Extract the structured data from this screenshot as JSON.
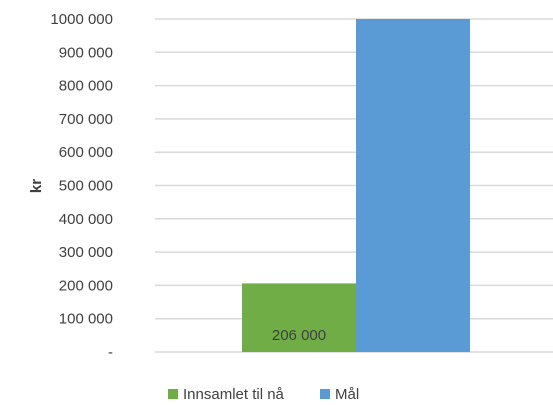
{
  "chart_data": {
    "type": "bar",
    "categories": [
      ""
    ],
    "series": [
      {
        "name": "Innsamlet til nå",
        "values": [
          206000
        ],
        "color": "#70AD47"
      },
      {
        "name": "Mål",
        "values": [
          1000000
        ],
        "color": "#5B9BD5"
      }
    ],
    "ylabel": "kr",
    "ylim": [
      0,
      1000000
    ],
    "yticks": [
      0,
      100000,
      200000,
      300000,
      400000,
      500000,
      600000,
      700000,
      800000,
      900000,
      1000000
    ],
    "ytick_labels": [
      "-",
      "100 000",
      "200 000",
      "300 000",
      "400 000",
      "500 000",
      "600 000",
      "700 000",
      "800 000",
      "900 000",
      "1000 000"
    ],
    "data_labels": [
      "206 000",
      ""
    ],
    "grid": true,
    "gridline_color": "#D9D9D9",
    "legend": "bottom"
  }
}
